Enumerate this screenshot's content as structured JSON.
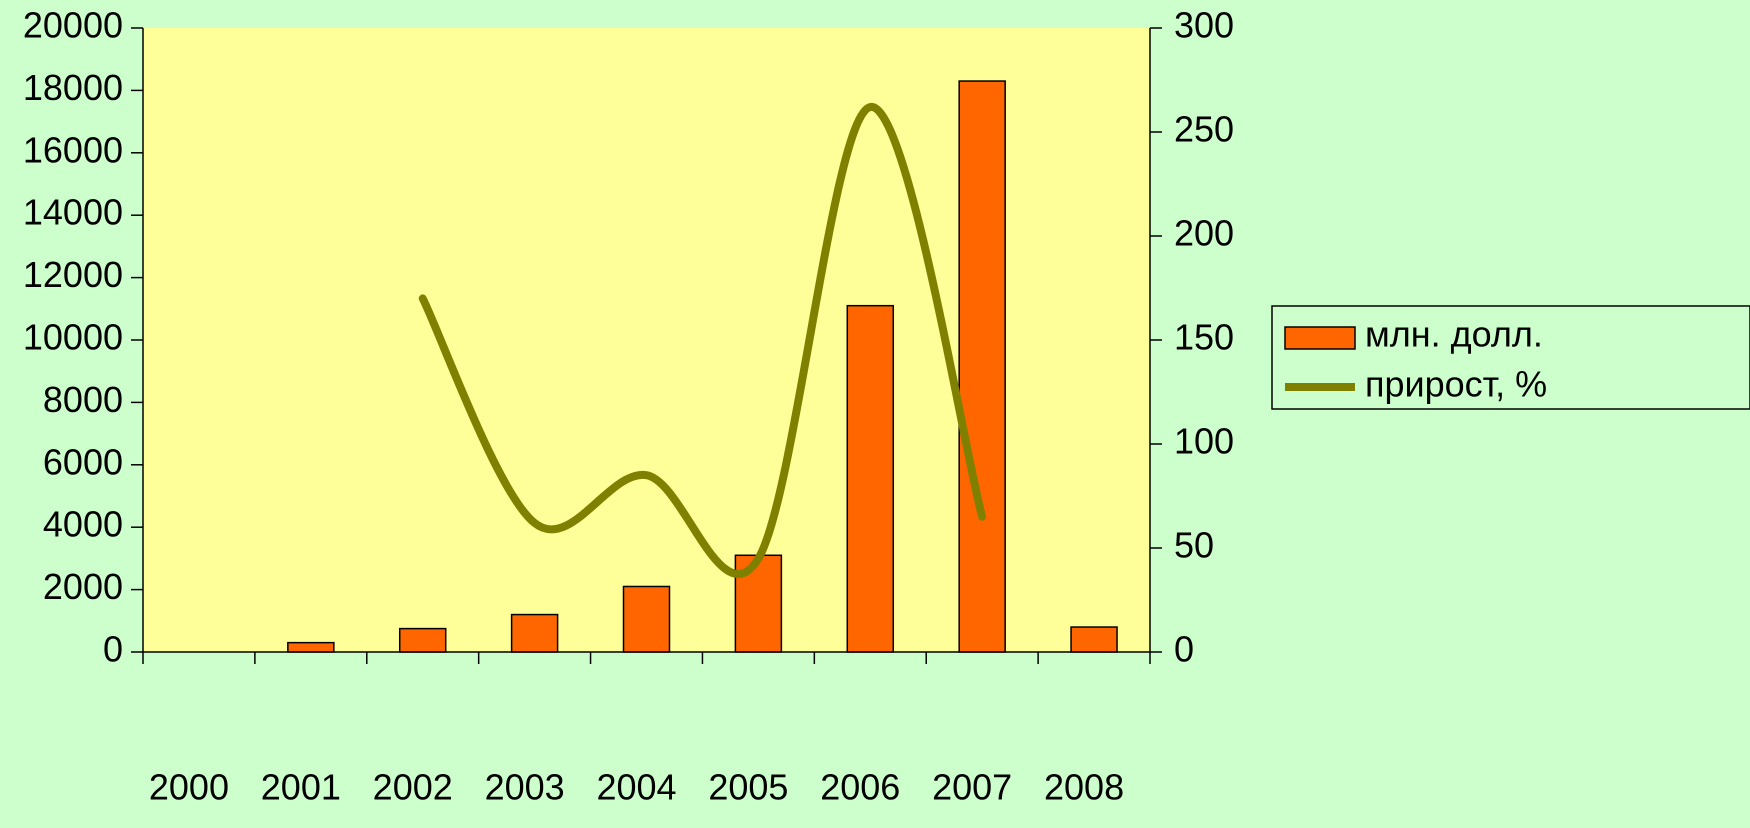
{
  "chart_data": {
    "type": "bar-line",
    "categories": [
      "2000",
      "2001",
      "2002",
      "2003",
      "2004",
      "2005",
      "2006",
      "2007",
      "2008"
    ],
    "series": [
      {
        "name": "млн. долл.",
        "type": "bar",
        "color": "#ff6600",
        "values": [
          0,
          300,
          750,
          1200,
          2100,
          3100,
          11100,
          18300,
          800
        ]
      },
      {
        "name": "прирост, %",
        "type": "line",
        "axis": "y2",
        "color": "#808000",
        "values": [
          null,
          null,
          170,
          62,
          85,
          45,
          262,
          65,
          null
        ]
      }
    ],
    "ylim": [
      0,
      20000
    ],
    "yticks": [
      0,
      2000,
      4000,
      6000,
      8000,
      10000,
      12000,
      14000,
      16000,
      18000,
      20000
    ],
    "y2lim": [
      0,
      300
    ],
    "y2ticks": [
      0,
      50,
      100,
      150,
      200,
      250,
      300
    ],
    "legend": "right"
  }
}
